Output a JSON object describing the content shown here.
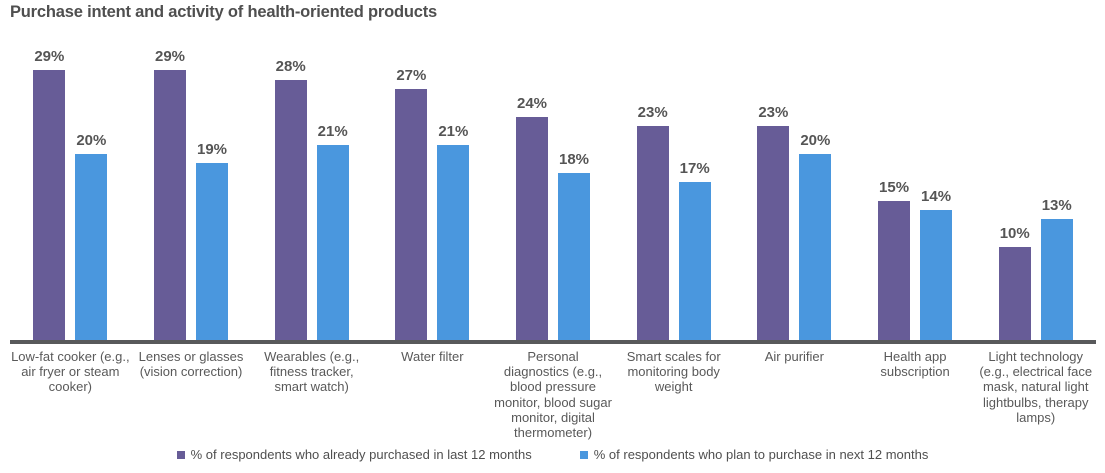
{
  "chart_data": {
    "type": "bar",
    "title": "Purchase intent and activity of health-oriented products",
    "categories": [
      "Low-fat cooker (e.g., air fryer or steam cooker)",
      "Lenses or glasses (vision correction)",
      "Wearables (e.g., fitness tracker, smart watch)",
      "Water filter",
      "Personal diagnostics (e.g., blood pressure monitor, blood sugar monitor, digital thermometer)",
      "Smart scales for monitoring body weight",
      "Air purifier",
      "Health app subscription",
      "Light technology (e.g., electrical face mask, natural light lightbulbs, therapy lamps)"
    ],
    "series": [
      {
        "name": "% of respondents who already purchased in last 12 months",
        "color": "#675c97",
        "values": [
          29,
          29,
          28,
          27,
          24,
          23,
          23,
          15,
          10
        ]
      },
      {
        "name": "% of respondents who plan to purchase in next 12 months",
        "color": "#4a97de",
        "values": [
          20,
          19,
          21,
          21,
          18,
          17,
          20,
          14,
          13
        ]
      }
    ],
    "value_suffix": "%",
    "ylim": [
      0,
      30
    ],
    "grid": false,
    "legend_position": "bottom",
    "axis_color": "#58595b",
    "title_color": "#4f4f4f",
    "value_label_color": "#555555",
    "category_label_color": "#595959"
  }
}
